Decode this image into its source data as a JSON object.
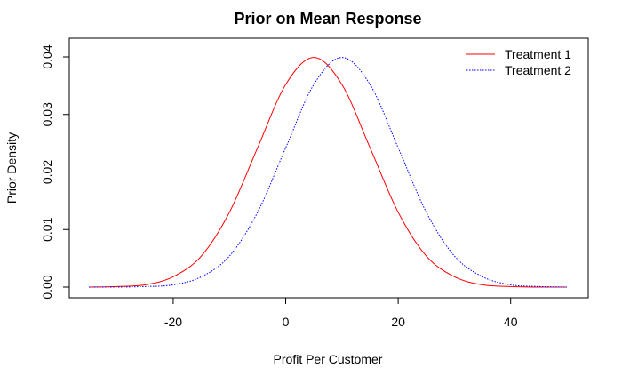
{
  "chart_data": {
    "type": "line",
    "title": "Prior on Mean Response",
    "xlabel": "Profit Per Customer",
    "ylabel": "Prior Density",
    "xlim": [
      -35,
      50
    ],
    "ylim": [
      0,
      0.04
    ],
    "xticks": [
      -20,
      0,
      20,
      40
    ],
    "xtick_labels": [
      "-20",
      "0",
      "20",
      "40"
    ],
    "yticks": [
      0,
      0.01,
      0.02,
      0.03,
      0.04
    ],
    "ytick_labels": [
      "0.00",
      "0.01",
      "0.02",
      "0.03",
      "0.04"
    ],
    "grid": false,
    "legend_position": "top-right",
    "series": [
      {
        "name": "Treatment 1",
        "color": "#ff0000",
        "line_style": "solid",
        "x": [
          -35,
          -30,
          -25,
          -20,
          -15,
          -10,
          -5,
          0,
          5,
          10,
          15,
          20,
          25,
          30,
          35,
          40,
          45,
          50
        ],
        "y": [
          0.0,
          0.0001,
          0.0004,
          0.0018,
          0.0054,
          0.013,
          0.0242,
          0.0352,
          0.0399,
          0.0352,
          0.0242,
          0.013,
          0.0054,
          0.0018,
          0.0004,
          0.0001,
          0.0,
          0.0
        ]
      },
      {
        "name": "Treatment 2",
        "color": "#0000ff",
        "line_style": "dotted",
        "x": [
          -35,
          -30,
          -25,
          -20,
          -15,
          -10,
          -5,
          0,
          5,
          10,
          15,
          20,
          25,
          30,
          35,
          40,
          45,
          50
        ],
        "y": [
          0.0,
          0.0,
          0.0001,
          0.0004,
          0.0018,
          0.0054,
          0.013,
          0.0242,
          0.0352,
          0.0399,
          0.0352,
          0.0242,
          0.013,
          0.0054,
          0.0018,
          0.0004,
          0.0001,
          0.0
        ]
      }
    ]
  }
}
